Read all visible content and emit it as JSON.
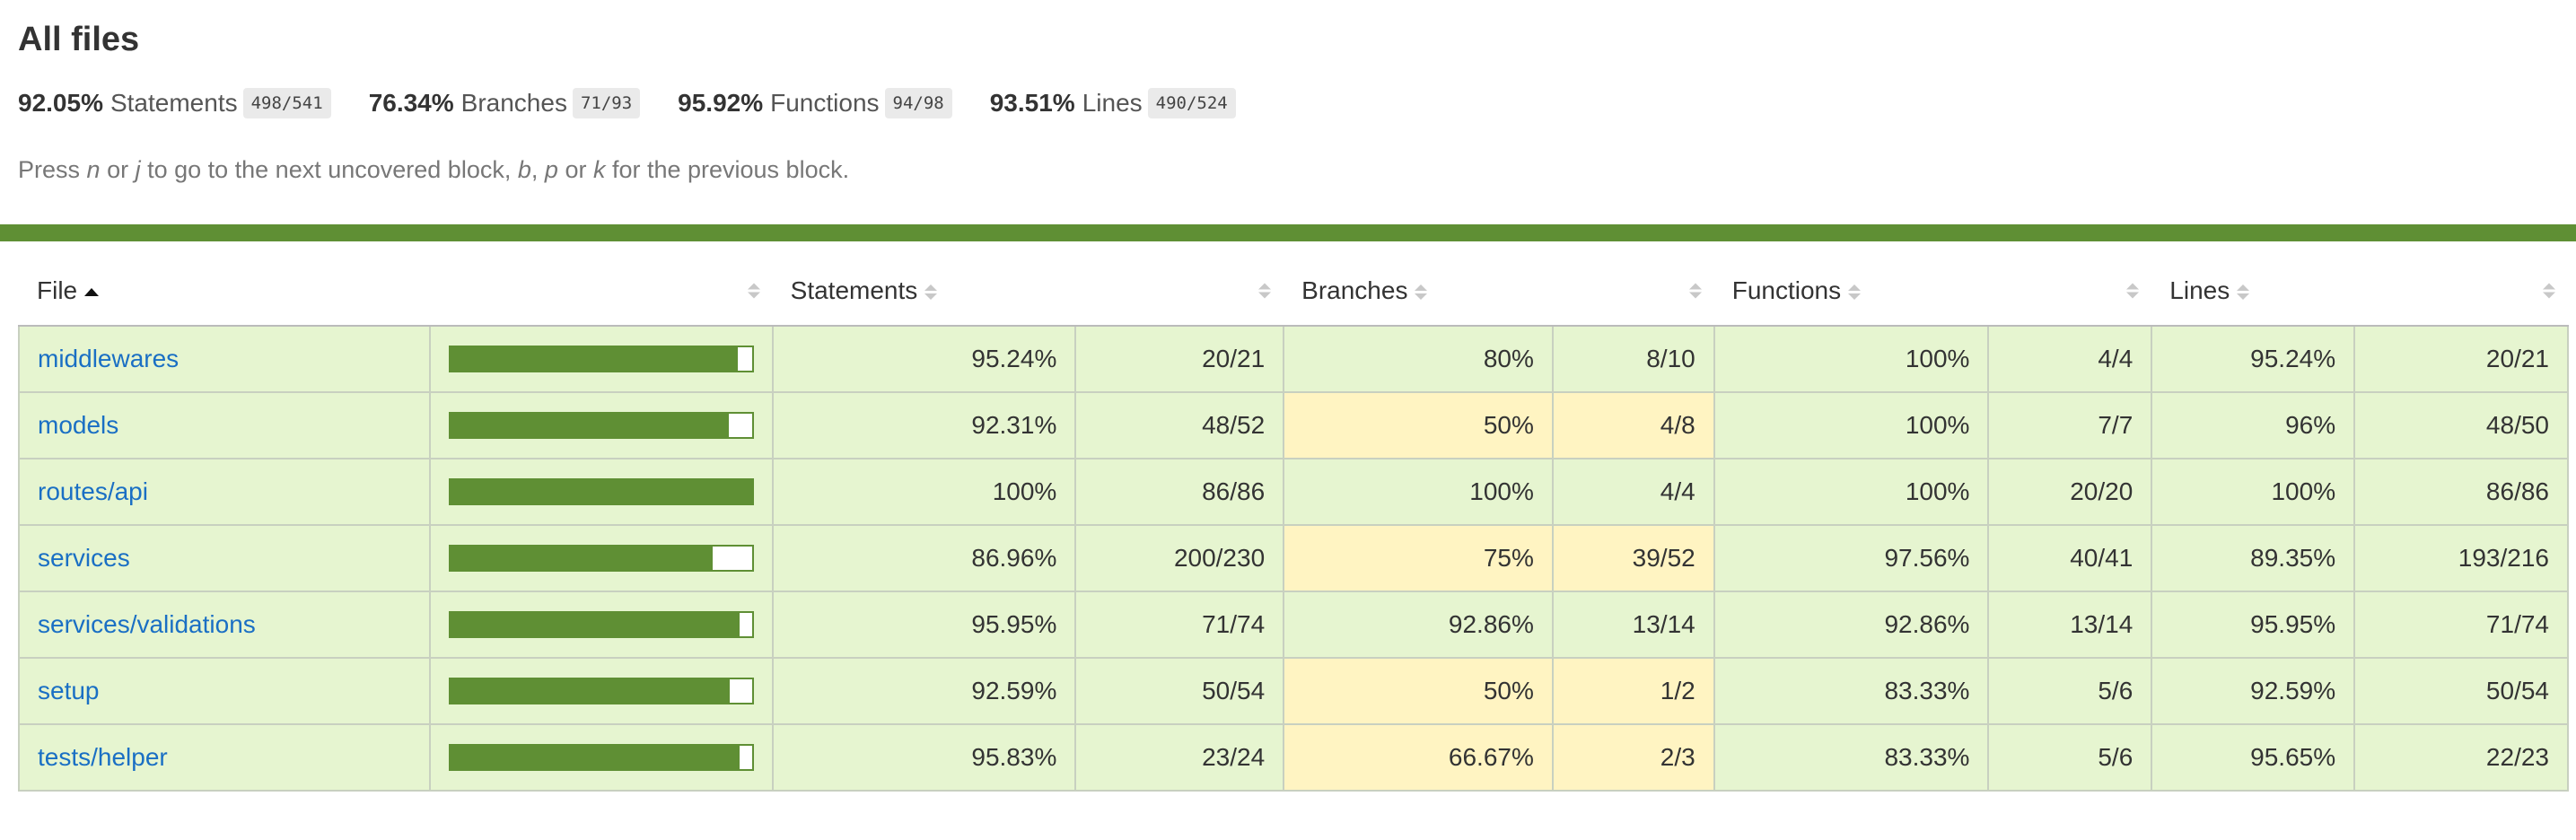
{
  "title": "All files",
  "summary": [
    {
      "pct": "92.05%",
      "label": "Statements",
      "frac": "498/541"
    },
    {
      "pct": "76.34%",
      "label": "Branches",
      "frac": "71/93"
    },
    {
      "pct": "95.92%",
      "label": "Functions",
      "frac": "94/98"
    },
    {
      "pct": "93.51%",
      "label": "Lines",
      "frac": "490/524"
    }
  ],
  "hint": {
    "p1": "Press ",
    "k1": "n",
    "p2": " or ",
    "k2": "j",
    "p3": " to go to the next uncovered block, ",
    "k3": "b",
    "p4": ", ",
    "k4": "p",
    "p5": " or ",
    "k5": "k",
    "p6": " for the previous block."
  },
  "headers": {
    "file": "File",
    "statements": "Statements",
    "branches": "Branches",
    "functions": "Functions",
    "lines": "Lines"
  },
  "colors": {
    "high": "#e6f5d0",
    "medium": "#fff4c2",
    "bar": "#5f8f34",
    "link": "#1a6fc4"
  },
  "rows": [
    {
      "file": "middlewares",
      "bar_fraction": 0.9524,
      "stmt_pct": "95.24%",
      "stmt_frac": "20/21",
      "br_pct": "80%",
      "br_frac": "8/10",
      "br_level": "high",
      "fn_pct": "100%",
      "fn_frac": "4/4",
      "ln_pct": "95.24%",
      "ln_frac": "20/21"
    },
    {
      "file": "models",
      "bar_fraction": 0.9231,
      "stmt_pct": "92.31%",
      "stmt_frac": "48/52",
      "br_pct": "50%",
      "br_frac": "4/8",
      "br_level": "medium",
      "fn_pct": "100%",
      "fn_frac": "7/7",
      "ln_pct": "96%",
      "ln_frac": "48/50"
    },
    {
      "file": "routes/api",
      "bar_fraction": 1.0,
      "stmt_pct": "100%",
      "stmt_frac": "86/86",
      "br_pct": "100%",
      "br_frac": "4/4",
      "br_level": "high",
      "fn_pct": "100%",
      "fn_frac": "20/20",
      "ln_pct": "100%",
      "ln_frac": "86/86"
    },
    {
      "file": "services",
      "bar_fraction": 0.8696,
      "stmt_pct": "86.96%",
      "stmt_frac": "200/230",
      "br_pct": "75%",
      "br_frac": "39/52",
      "br_level": "medium",
      "fn_pct": "97.56%",
      "fn_frac": "40/41",
      "ln_pct": "89.35%",
      "ln_frac": "193/216"
    },
    {
      "file": "services/validations",
      "bar_fraction": 0.9595,
      "stmt_pct": "95.95%",
      "stmt_frac": "71/74",
      "br_pct": "92.86%",
      "br_frac": "13/14",
      "br_level": "high",
      "fn_pct": "92.86%",
      "fn_frac": "13/14",
      "ln_pct": "95.95%",
      "ln_frac": "71/74"
    },
    {
      "file": "setup",
      "bar_fraction": 0.9259,
      "stmt_pct": "92.59%",
      "stmt_frac": "50/54",
      "br_pct": "50%",
      "br_frac": "1/2",
      "br_level": "medium",
      "fn_pct": "83.33%",
      "fn_frac": "5/6",
      "ln_pct": "92.59%",
      "ln_frac": "50/54"
    },
    {
      "file": "tests/helper",
      "bar_fraction": 0.9583,
      "stmt_pct": "95.83%",
      "stmt_frac": "23/24",
      "br_pct": "66.67%",
      "br_frac": "2/3",
      "br_level": "medium",
      "fn_pct": "83.33%",
      "fn_frac": "5/6",
      "ln_pct": "95.65%",
      "ln_frac": "22/23"
    }
  ]
}
